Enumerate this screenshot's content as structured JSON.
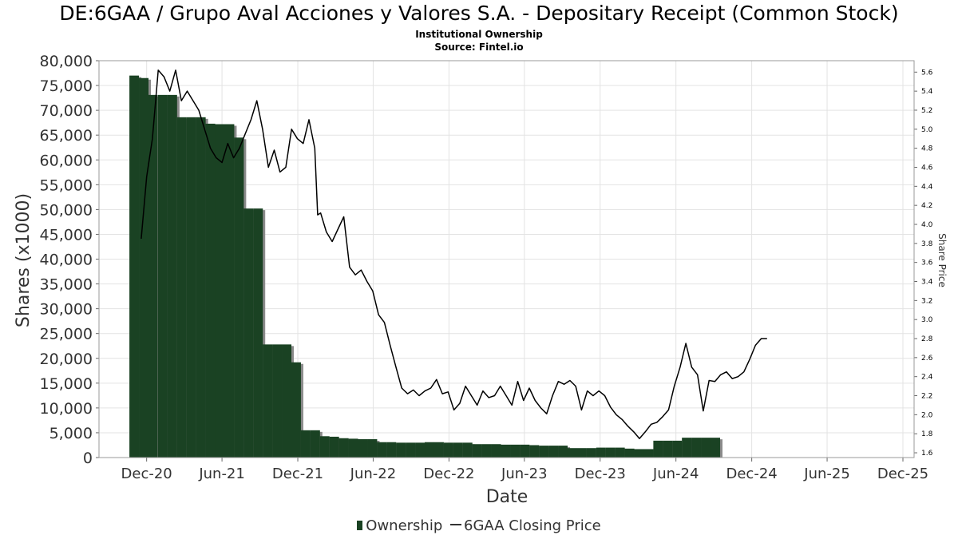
{
  "chart_data": {
    "type": "bar",
    "title": "DE:6GAA / Grupo Aval Acciones y Valores S.A. - Depositary Receipt (Common Stock)",
    "subtitle": "Institutional Ownership",
    "source": "Source: Fintel.io",
    "xlabel": "Date",
    "ylabel": "Shares (x1000)",
    "y2label": "Share Price",
    "grid": true,
    "legend_position": "bottom",
    "x_range": [
      "2020-08-08",
      "2025-12-28"
    ],
    "ylim": [
      0,
      80000
    ],
    "y2lim": [
      1.55,
      5.72
    ],
    "x_ticks": [
      {
        "date": "2020-12-01",
        "label": "Dec-20"
      },
      {
        "date": "2021-06-01",
        "label": "Jun-21"
      },
      {
        "date": "2021-12-01",
        "label": "Dec-21"
      },
      {
        "date": "2022-06-01",
        "label": "Jun-22"
      },
      {
        "date": "2022-12-01",
        "label": "Dec-22"
      },
      {
        "date": "2023-06-01",
        "label": "Jun-23"
      },
      {
        "date": "2023-12-01",
        "label": "Dec-23"
      },
      {
        "date": "2024-06-01",
        "label": "Jun-24"
      },
      {
        "date": "2024-12-01",
        "label": "Dec-24"
      },
      {
        "date": "2025-06-01",
        "label": "Jun-25"
      },
      {
        "date": "2025-12-01",
        "label": "Dec-25"
      }
    ],
    "y_ticks": [
      {
        "value": 0,
        "label": "0"
      },
      {
        "value": 5000,
        "label": "5,000"
      },
      {
        "value": 10000,
        "label": "10,000"
      },
      {
        "value": 15000,
        "label": "15,000"
      },
      {
        "value": 20000,
        "label": "20,000"
      },
      {
        "value": 25000,
        "label": "25,000"
      },
      {
        "value": 30000,
        "label": "30,000"
      },
      {
        "value": 35000,
        "label": "35,000"
      },
      {
        "value": 40000,
        "label": "40,000"
      },
      {
        "value": 45000,
        "label": "45,000"
      },
      {
        "value": 50000,
        "label": "50,000"
      },
      {
        "value": 55000,
        "label": "55,000"
      },
      {
        "value": 60000,
        "label": "60,000"
      },
      {
        "value": 65000,
        "label": "65,000"
      },
      {
        "value": 70000,
        "label": "70,000"
      },
      {
        "value": 75000,
        "label": "75,000"
      },
      {
        "value": 80000,
        "label": "80,000"
      }
    ],
    "y2_ticks": [
      {
        "value": 1.6,
        "label": "1.6"
      },
      {
        "value": 1.8,
        "label": "1.8"
      },
      {
        "value": 2.0,
        "label": "2.0"
      },
      {
        "value": 2.2,
        "label": "2.2"
      },
      {
        "value": 2.4,
        "label": "2.4"
      },
      {
        "value": 2.6,
        "label": "2.6"
      },
      {
        "value": 2.8,
        "label": "2.8"
      },
      {
        "value": 3.0,
        "label": "3.0"
      },
      {
        "value": 3.2,
        "label": "3.2"
      },
      {
        "value": 3.4,
        "label": "3.4"
      },
      {
        "value": 3.6,
        "label": "3.6"
      },
      {
        "value": 3.8,
        "label": "3.8"
      },
      {
        "value": 4.0,
        "label": "4.0"
      },
      {
        "value": 4.2,
        "label": "4.2"
      },
      {
        "value": 4.4,
        "label": "4.4"
      },
      {
        "value": 4.6,
        "label": "4.6"
      },
      {
        "value": 4.8,
        "label": "4.8"
      },
      {
        "value": 5.0,
        "label": "5.0"
      },
      {
        "value": 5.2,
        "label": "5.2"
      },
      {
        "value": 5.4,
        "label": "5.4"
      },
      {
        "value": 5.6,
        "label": "5.6"
      }
    ],
    "series": [
      {
        "name": "Ownership",
        "type": "bar",
        "color": "#1a4223",
        "shadow_color": "#8a8a8a",
        "points": [
          {
            "date": "2020-11-01",
            "value": 77000
          },
          {
            "date": "2020-11-24",
            "value": 76500
          },
          {
            "date": "2020-12-16",
            "value": 73100
          },
          {
            "date": "2021-01-09",
            "value": 73100
          },
          {
            "date": "2021-02-01",
            "value": 73100
          },
          {
            "date": "2021-02-24",
            "value": 68600
          },
          {
            "date": "2021-03-19",
            "value": 68600
          },
          {
            "date": "2021-04-11",
            "value": 68600
          },
          {
            "date": "2021-05-04",
            "value": 67300
          },
          {
            "date": "2021-05-27",
            "value": 67200
          },
          {
            "date": "2021-06-19",
            "value": 67200
          },
          {
            "date": "2021-07-12",
            "value": 64500
          },
          {
            "date": "2021-08-04",
            "value": 50200
          },
          {
            "date": "2021-08-27",
            "value": 50200
          },
          {
            "date": "2021-09-19",
            "value": 22800
          },
          {
            "date": "2021-10-12",
            "value": 22800
          },
          {
            "date": "2021-11-04",
            "value": 22800
          },
          {
            "date": "2021-11-27",
            "value": 19200
          },
          {
            "date": "2021-12-20",
            "value": 5500
          },
          {
            "date": "2022-01-12",
            "value": 5500
          },
          {
            "date": "2022-02-04",
            "value": 4300
          },
          {
            "date": "2022-02-27",
            "value": 4200
          },
          {
            "date": "2022-03-22",
            "value": 3900
          },
          {
            "date": "2022-04-14",
            "value": 3800
          },
          {
            "date": "2022-05-07",
            "value": 3700
          },
          {
            "date": "2022-05-30",
            "value": 3700
          },
          {
            "date": "2022-06-22",
            "value": 3100
          },
          {
            "date": "2022-07-15",
            "value": 3100
          },
          {
            "date": "2022-08-07",
            "value": 3000
          },
          {
            "date": "2022-08-30",
            "value": 3000
          },
          {
            "date": "2022-09-22",
            "value": 3000
          },
          {
            "date": "2022-10-15",
            "value": 3100
          },
          {
            "date": "2022-11-07",
            "value": 3100
          },
          {
            "date": "2022-11-30",
            "value": 3000
          },
          {
            "date": "2022-12-23",
            "value": 3000
          },
          {
            "date": "2023-01-15",
            "value": 3000
          },
          {
            "date": "2023-02-07",
            "value": 2700
          },
          {
            "date": "2023-03-02",
            "value": 2700
          },
          {
            "date": "2023-03-25",
            "value": 2700
          },
          {
            "date": "2023-04-17",
            "value": 2600
          },
          {
            "date": "2023-05-10",
            "value": 2600
          },
          {
            "date": "2023-06-02",
            "value": 2600
          },
          {
            "date": "2023-06-25",
            "value": 2500
          },
          {
            "date": "2023-07-18",
            "value": 2400
          },
          {
            "date": "2023-08-10",
            "value": 2400
          },
          {
            "date": "2023-09-02",
            "value": 2400
          },
          {
            "date": "2023-09-25",
            "value": 1900
          },
          {
            "date": "2023-10-18",
            "value": 1900
          },
          {
            "date": "2023-11-10",
            "value": 1900
          },
          {
            "date": "2023-12-03",
            "value": 2000
          },
          {
            "date": "2023-12-26",
            "value": 2000
          },
          {
            "date": "2024-01-18",
            "value": 2000
          },
          {
            "date": "2024-02-10",
            "value": 1800
          },
          {
            "date": "2024-03-04",
            "value": 1700
          },
          {
            "date": "2024-03-27",
            "value": 1700
          },
          {
            "date": "2024-04-19",
            "value": 3400
          },
          {
            "date": "2024-05-12",
            "value": 3400
          },
          {
            "date": "2024-06-04",
            "value": 3400
          },
          {
            "date": "2024-06-27",
            "value": 4000
          },
          {
            "date": "2024-07-20",
            "value": 4000
          },
          {
            "date": "2024-08-12",
            "value": 4000
          },
          {
            "date": "2024-09-04",
            "value": 4000
          }
        ]
      },
      {
        "name": "6GAA Closing Price",
        "type": "line",
        "color": "#000000",
        "points": [
          {
            "date": "2020-11-18",
            "value": 3.85
          },
          {
            "date": "2020-12-01",
            "value": 4.5
          },
          {
            "date": "2020-12-15",
            "value": 4.9
          },
          {
            "date": "2020-12-29",
            "value": 5.62
          },
          {
            "date": "2021-01-12",
            "value": 5.55
          },
          {
            "date": "2021-01-26",
            "value": 5.4
          },
          {
            "date": "2021-02-09",
            "value": 5.62
          },
          {
            "date": "2021-02-23",
            "value": 5.3
          },
          {
            "date": "2021-03-09",
            "value": 5.4
          },
          {
            "date": "2021-03-23",
            "value": 5.3
          },
          {
            "date": "2021-04-06",
            "value": 5.2
          },
          {
            "date": "2021-04-20",
            "value": 5.0
          },
          {
            "date": "2021-05-04",
            "value": 4.8
          },
          {
            "date": "2021-05-18",
            "value": 4.7
          },
          {
            "date": "2021-06-01",
            "value": 4.65
          },
          {
            "date": "2021-06-15",
            "value": 4.85
          },
          {
            "date": "2021-06-29",
            "value": 4.7
          },
          {
            "date": "2021-07-13",
            "value": 4.8
          },
          {
            "date": "2021-07-27",
            "value": 4.95
          },
          {
            "date": "2021-08-10",
            "value": 5.1
          },
          {
            "date": "2021-08-24",
            "value": 5.3
          },
          {
            "date": "2021-09-07",
            "value": 5.0
          },
          {
            "date": "2021-09-21",
            "value": 4.6
          },
          {
            "date": "2021-10-05",
            "value": 4.78
          },
          {
            "date": "2021-10-19",
            "value": 4.55
          },
          {
            "date": "2021-11-02",
            "value": 4.6
          },
          {
            "date": "2021-11-16",
            "value": 5.0
          },
          {
            "date": "2021-11-30",
            "value": 4.9
          },
          {
            "date": "2021-12-14",
            "value": 4.85
          },
          {
            "date": "2021-12-28",
            "value": 5.1
          },
          {
            "date": "2022-01-11",
            "value": 4.8
          },
          {
            "date": "2022-01-18",
            "value": 4.1
          },
          {
            "date": "2022-01-25",
            "value": 4.12
          },
          {
            "date": "2022-02-08",
            "value": 3.92
          },
          {
            "date": "2022-02-22",
            "value": 3.82
          },
          {
            "date": "2022-03-08",
            "value": 3.95
          },
          {
            "date": "2022-03-22",
            "value": 4.08
          },
          {
            "date": "2022-04-05",
            "value": 3.55
          },
          {
            "date": "2022-04-19",
            "value": 3.47
          },
          {
            "date": "2022-05-03",
            "value": 3.52
          },
          {
            "date": "2022-05-17",
            "value": 3.4
          },
          {
            "date": "2022-05-31",
            "value": 3.3
          },
          {
            "date": "2022-06-14",
            "value": 3.05
          },
          {
            "date": "2022-06-28",
            "value": 2.97
          },
          {
            "date": "2022-07-12",
            "value": 2.73
          },
          {
            "date": "2022-07-26",
            "value": 2.5
          },
          {
            "date": "2022-08-09",
            "value": 2.28
          },
          {
            "date": "2022-08-23",
            "value": 2.22
          },
          {
            "date": "2022-09-06",
            "value": 2.26
          },
          {
            "date": "2022-09-20",
            "value": 2.2
          },
          {
            "date": "2022-10-04",
            "value": 2.25
          },
          {
            "date": "2022-10-18",
            "value": 2.28
          },
          {
            "date": "2022-11-01",
            "value": 2.37
          },
          {
            "date": "2022-11-15",
            "value": 2.22
          },
          {
            "date": "2022-11-29",
            "value": 2.24
          },
          {
            "date": "2022-12-13",
            "value": 2.05
          },
          {
            "date": "2022-12-27",
            "value": 2.12
          },
          {
            "date": "2023-01-10",
            "value": 2.3
          },
          {
            "date": "2023-01-24",
            "value": 2.2
          },
          {
            "date": "2023-02-07",
            "value": 2.1
          },
          {
            "date": "2023-02-21",
            "value": 2.25
          },
          {
            "date": "2023-03-07",
            "value": 2.18
          },
          {
            "date": "2023-03-21",
            "value": 2.2
          },
          {
            "date": "2023-04-04",
            "value": 2.3
          },
          {
            "date": "2023-04-18",
            "value": 2.2
          },
          {
            "date": "2023-05-02",
            "value": 2.1
          },
          {
            "date": "2023-05-16",
            "value": 2.35
          },
          {
            "date": "2023-05-30",
            "value": 2.15
          },
          {
            "date": "2023-06-13",
            "value": 2.28
          },
          {
            "date": "2023-06-27",
            "value": 2.15
          },
          {
            "date": "2023-07-11",
            "value": 2.07
          },
          {
            "date": "2023-07-25",
            "value": 2.01
          },
          {
            "date": "2023-08-08",
            "value": 2.2
          },
          {
            "date": "2023-08-22",
            "value": 2.35
          },
          {
            "date": "2023-09-05",
            "value": 2.32
          },
          {
            "date": "2023-09-19",
            "value": 2.36
          },
          {
            "date": "2023-10-03",
            "value": 2.3
          },
          {
            "date": "2023-10-17",
            "value": 2.05
          },
          {
            "date": "2023-10-31",
            "value": 2.25
          },
          {
            "date": "2023-11-14",
            "value": 2.2
          },
          {
            "date": "2023-11-28",
            "value": 2.25
          },
          {
            "date": "2023-12-12",
            "value": 2.2
          },
          {
            "date": "2023-12-26",
            "value": 2.08
          },
          {
            "date": "2024-01-09",
            "value": 2.0
          },
          {
            "date": "2024-01-23",
            "value": 1.95
          },
          {
            "date": "2024-02-06",
            "value": 1.88
          },
          {
            "date": "2024-02-20",
            "value": 1.82
          },
          {
            "date": "2024-03-05",
            "value": 1.75
          },
          {
            "date": "2024-03-19",
            "value": 1.82
          },
          {
            "date": "2024-04-02",
            "value": 1.9
          },
          {
            "date": "2024-04-16",
            "value": 1.92
          },
          {
            "date": "2024-04-30",
            "value": 1.98
          },
          {
            "date": "2024-05-14",
            "value": 2.05
          },
          {
            "date": "2024-05-28",
            "value": 2.3
          },
          {
            "date": "2024-06-11",
            "value": 2.5
          },
          {
            "date": "2024-06-25",
            "value": 2.75
          },
          {
            "date": "2024-07-09",
            "value": 2.5
          },
          {
            "date": "2024-07-23",
            "value": 2.42
          },
          {
            "date": "2024-08-06",
            "value": 2.04
          },
          {
            "date": "2024-08-20",
            "value": 2.36
          },
          {
            "date": "2024-09-03",
            "value": 2.35
          },
          {
            "date": "2024-09-17",
            "value": 2.42
          },
          {
            "date": "2024-10-01",
            "value": 2.45
          },
          {
            "date": "2024-10-15",
            "value": 2.38
          },
          {
            "date": "2024-10-29",
            "value": 2.4
          },
          {
            "date": "2024-11-12",
            "value": 2.45
          },
          {
            "date": "2024-11-26",
            "value": 2.58
          },
          {
            "date": "2024-12-10",
            "value": 2.73
          },
          {
            "date": "2024-12-24",
            "value": 2.8
          },
          {
            "date": "2025-01-07",
            "value": 2.8
          }
        ]
      }
    ]
  },
  "legend": {
    "ownership_label": "Ownership",
    "price_label": "6GAA Closing Price"
  }
}
